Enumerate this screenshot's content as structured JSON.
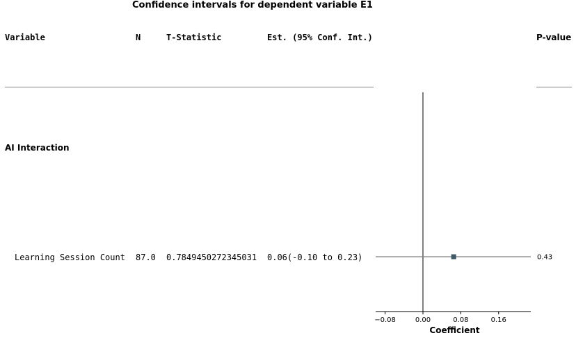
{
  "title": "Confidence intervals for dependent variable E1",
  "headers": {
    "variable": "Variable",
    "n": "N",
    "t_statistic": "T-Statistic",
    "estimate": "Est. (95% Conf. Int.)",
    "p_value": "P-value"
  },
  "group_label": "AI Interaction",
  "rows": [
    {
      "variable": "Learning Session Count",
      "n": "87.0",
      "t_statistic": "0.7849450272345031",
      "estimate": "0.06(-0.10 to 0.23)",
      "p_value": "0.43"
    }
  ],
  "chart_data": {
    "type": "scatter",
    "xlabel": "Coefficient",
    "xlim": [
      -0.1,
      0.228
    ],
    "x_ticks": [
      -0.08,
      0.0,
      0.08,
      0.16
    ],
    "x_tick_labels": [
      "−0.08",
      "0.00",
      "0.08",
      "0.16"
    ],
    "reference_line": 0.0,
    "points": [
      {
        "estimate": 0.065,
        "ci_low": -0.1,
        "ci_high": 0.228,
        "p_value": "0.43"
      }
    ],
    "colors": {
      "marker": "#3d5a66",
      "ci_line": "#808080",
      "reference": "#000000"
    }
  }
}
